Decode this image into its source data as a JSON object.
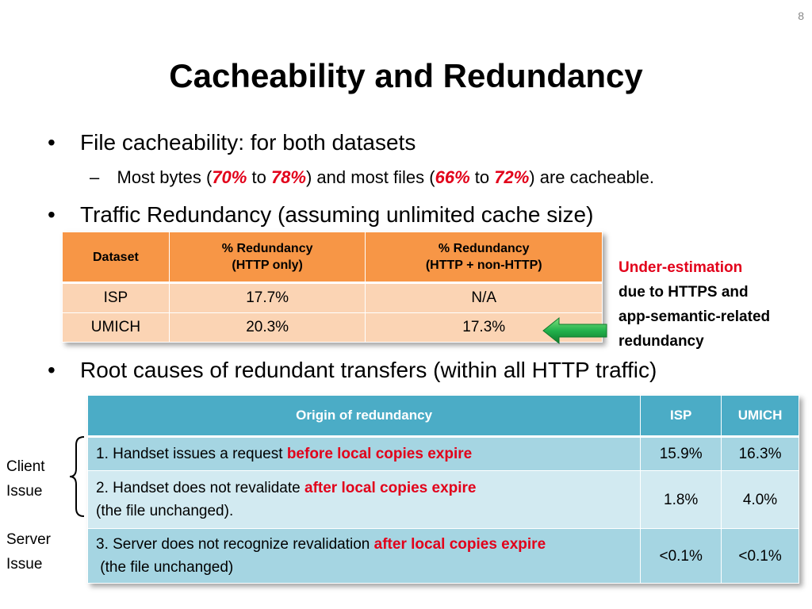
{
  "slide_number": "8",
  "title": "Cacheability and Redundancy",
  "bullet1": {
    "marker": "•",
    "text": "File cacheability: for both datasets"
  },
  "sub1": {
    "marker": "–",
    "p1": "Most bytes (",
    "v1": "70%",
    "p2": " to ",
    "v2": "78%",
    "p3": ") and most files (",
    "v3": "66%",
    "p4": " to ",
    "v4": "72%",
    "p5": ") are cacheable."
  },
  "bullet2": {
    "marker": "•",
    "text": "Traffic Redundancy (assuming unlimited cache size)"
  },
  "table1": {
    "headers": [
      "Dataset",
      "% Redundancy",
      "(HTTP only)",
      "% Redundancy",
      "(HTTP + non-HTTP)"
    ],
    "rows": [
      [
        "ISP",
        "17.7%",
        "N/A"
      ],
      [
        "UMICH",
        "20.3%",
        "17.3%"
      ]
    ]
  },
  "note": {
    "line1": "Under-estimation",
    "line2": "due to HTTPS and",
    "line3": "app-semantic-related",
    "line4": "redundancy"
  },
  "bullet3": {
    "marker": "•",
    "text": "Root causes of redundant transfers (within all HTTP traffic)"
  },
  "table2": {
    "headers": [
      "Origin of redundancy",
      "ISP",
      "UMICH"
    ],
    "row1": {
      "a": "1. Handset issues a request ",
      "b": "before local copies expire",
      "isp": "15.9%",
      "umich": "16.3%"
    },
    "row2": {
      "a": "2. Handset does not revalidate ",
      "b": "after local copies expire",
      "c": "(the file unchanged).",
      "isp": "1.8%",
      "umich": "4.0%"
    },
    "row3": {
      "a": "3. Server does not recognize revalidation ",
      "b": "after local copies expire",
      "c": " (the file unchanged)",
      "isp": "<0.1%",
      "umich": "<0.1%"
    }
  },
  "labels": {
    "client1": "Client",
    "client2": "Issue",
    "server1": "Server",
    "server2": "Issue"
  },
  "colors": {
    "highlight_red": "#e2001a",
    "table1_header": "#f79646",
    "table1_body": "#fbd4b4",
    "table2_header": "#4bacc6",
    "table2_dark": "#a5d5e2",
    "table2_light": "#d2eaf1",
    "arrow": "#22b14c"
  },
  "icons": {
    "arrow": "left-arrow-icon",
    "brace": "left-brace-icon"
  }
}
